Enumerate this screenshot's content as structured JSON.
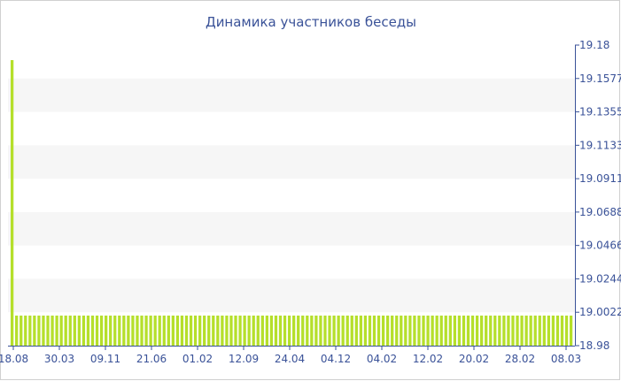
{
  "chart_data": {
    "type": "bar",
    "title": "Динамика участников беседы",
    "xlabel": "",
    "ylabel": "",
    "ylim": [
      18.98,
      19.18
    ],
    "y_ticks": [
      "19.18",
      "19.1577",
      "19.1355",
      "19.1133",
      "19.0911",
      "19.0688",
      "19.0466",
      "19.0244",
      "19.0022",
      "18.98"
    ],
    "x_tick_labels": [
      "18.08",
      "30.03",
      "09.11",
      "21.06",
      "01.02",
      "12.09",
      "24.04",
      "04.12",
      "04.02",
      "12.02",
      "20.02",
      "28.02",
      "08.03"
    ],
    "series": [
      {
        "values": [
          19.17,
          19.0,
          19.0,
          19.0,
          19.0,
          19.0,
          19.0,
          19.0,
          19.0,
          19.0,
          19.0,
          19.0,
          19.0,
          19.0,
          19.0,
          19.0,
          19.0,
          19.0,
          19.0,
          19.0,
          19.0,
          19.0,
          19.0,
          19.0,
          19.0,
          19.0,
          19.0,
          19.0,
          19.0,
          19.0,
          19.0,
          19.0,
          19.0,
          19.0,
          19.0,
          19.0,
          19.0,
          19.0,
          19.0,
          19.0,
          19.0,
          19.0,
          19.0,
          19.0,
          19.0,
          19.0,
          19.0,
          19.0,
          19.0,
          19.0,
          19.0,
          19.0,
          19.0,
          19.0,
          19.0,
          19.0,
          19.0,
          19.0,
          19.0,
          19.0,
          19.0,
          19.0,
          19.0,
          19.0,
          19.0,
          19.0,
          19.0,
          19.0,
          19.0,
          19.0,
          19.0,
          19.0,
          19.0,
          19.0,
          19.0,
          19.0,
          19.0,
          19.0,
          19.0,
          19.0,
          19.0,
          19.0,
          19.0,
          19.0,
          19.0,
          19.0,
          19.0,
          19.0,
          19.0,
          19.0,
          19.0,
          19.0,
          19.0,
          19.0,
          19.0,
          19.0,
          19.0,
          19.0,
          19.0,
          19.0,
          19.0,
          19.0,
          19.0,
          19.0,
          19.0,
          19.0,
          19.0,
          19.0,
          19.0,
          19.0,
          19.0,
          19.0,
          19.0,
          19.0,
          19.0,
          19.0,
          19.0,
          19.0,
          19.0,
          19.0,
          19.0,
          19.0,
          19.0,
          19.0,
          19.0,
          19.0
        ]
      }
    ],
    "grid": true,
    "legend": "none",
    "colors": {
      "bar": "#b5df2b",
      "band": "#f6f6f6",
      "axis": "#3a5298",
      "text": "#3a5298"
    }
  }
}
